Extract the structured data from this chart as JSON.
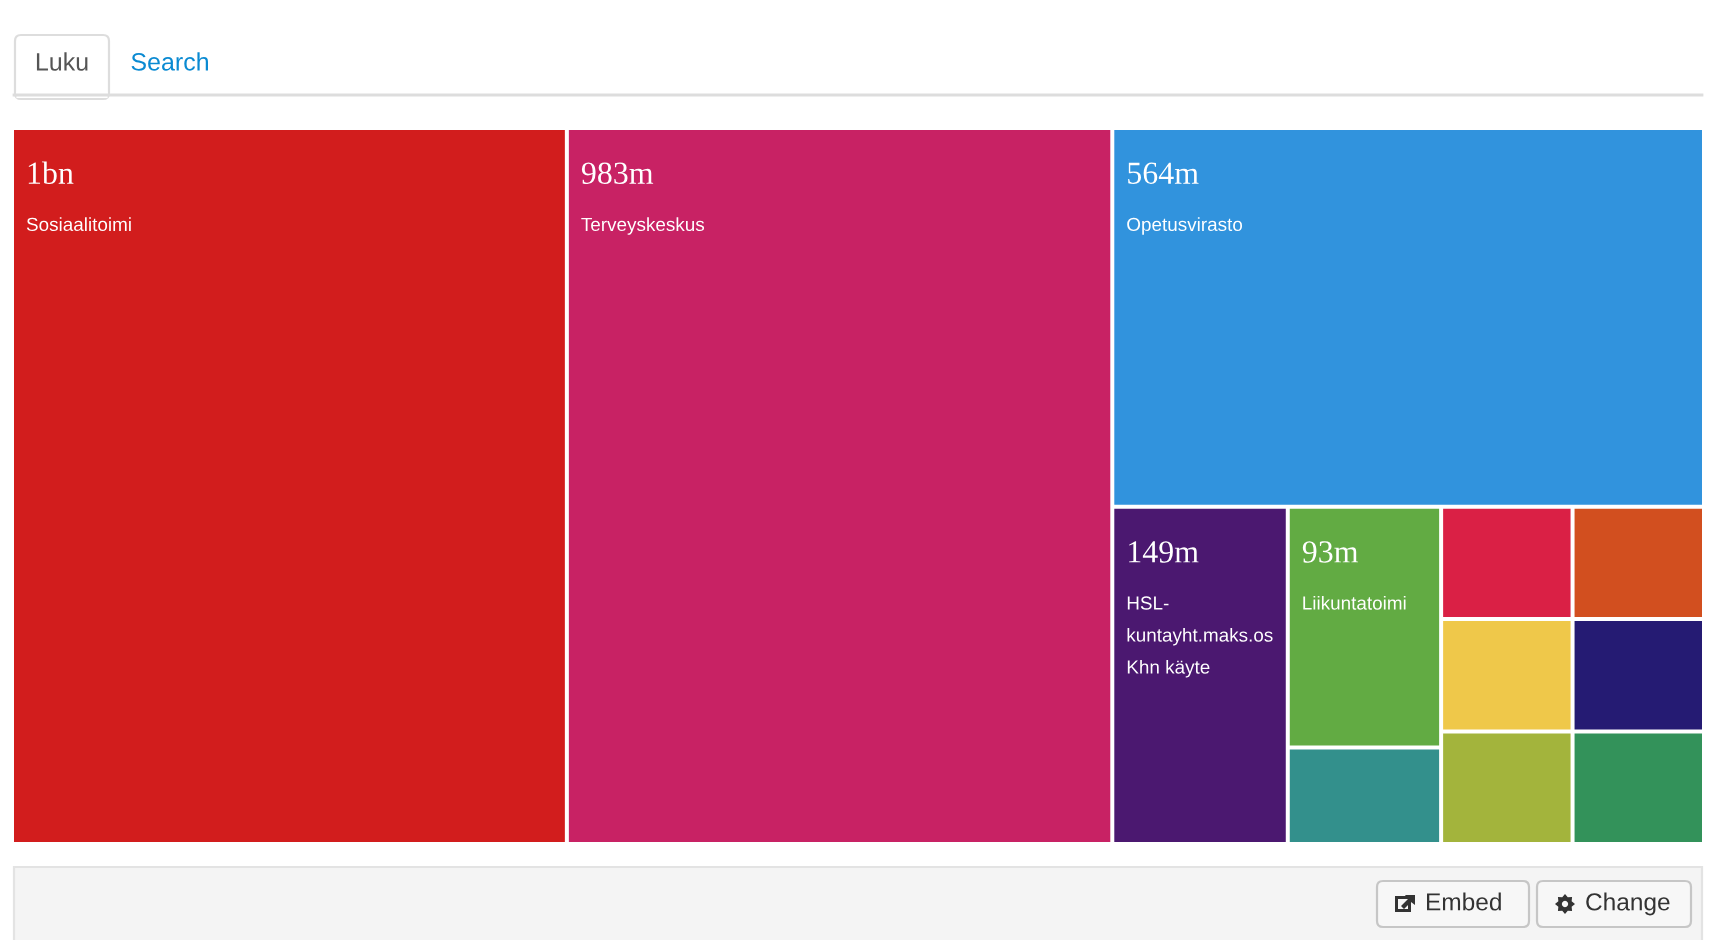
{
  "chart_data": {
    "type": "other",
    "categories": [
      "Sosiaalitoimi",
      "Terveyskeskus",
      "Opetusvirasto",
      "HSL-kuntayht.maks.os Khn käyte",
      "Liikuntatoimi",
      null,
      null,
      null,
      null,
      null,
      null,
      null
    ],
    "values": [
      1000000000,
      983000000,
      564000000,
      149000000,
      93000000,
      null,
      null,
      null,
      null,
      null,
      null,
      null
    ],
    "value_labels": [
      "1bn",
      "983m",
      "564m",
      "149m",
      "93m",
      null,
      null,
      null,
      null,
      null,
      null,
      null
    ],
    "colors": [
      "#d21d1d",
      "#c82264",
      "#3193dd",
      "#4b1870",
      "#62ab43",
      "#33908c",
      "#da2045",
      "#d24f1f",
      "#efc84a",
      "#a3b43c",
      "#251b73",
      "#33925a"
    ],
    "annotations": [
      "Luku",
      "Search",
      "Embed",
      "Change"
    ]
  }
}
